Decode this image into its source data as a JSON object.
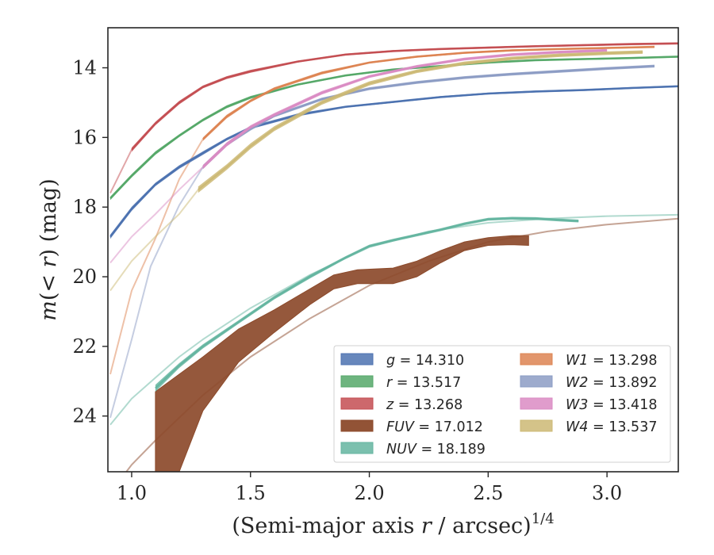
{
  "chart_data": {
    "type": "line",
    "xlabel": "(Semi-major axis r / arcsec)",
    "xlabel_prefix": "(Semi-major axis ",
    "xlabel_var": "r",
    "xlabel_suffix": " / arcsec)",
    "xlabel_exponent": "1/4",
    "ylabel": "m(< r) (mag)",
    "ylabel_var": "m",
    "ylabel_mid": "(< ",
    "ylabel_var2": "r",
    "ylabel_tail": ") (mag)",
    "xlim": [
      0.9,
      3.3
    ],
    "ylim": [
      25.6,
      12.85
    ],
    "y_inverted": true,
    "xticks": [
      1.0,
      1.5,
      2.0,
      2.5,
      3.0
    ],
    "xtick_labels": [
      "1.0",
      "1.5",
      "2.0",
      "2.5",
      "3.0"
    ],
    "yticks": [
      14,
      16,
      18,
      20,
      22,
      24
    ],
    "ytick_labels": [
      "14",
      "16",
      "18",
      "20",
      "22",
      "24"
    ],
    "legend_position": "lower-right",
    "series": [
      {
        "name": "g = 14.310",
        "band": "g",
        "value": "14.310",
        "color": "#4c72b0",
        "kind": "band",
        "x": [
          0.91,
          1.0,
          1.1,
          1.2,
          1.3,
          1.4,
          1.5,
          1.7,
          1.9,
          2.1,
          2.3,
          2.5,
          2.7,
          2.9,
          3.1,
          3.3
        ],
        "y": [
          18.85,
          18.05,
          17.35,
          16.85,
          16.45,
          16.05,
          15.72,
          15.35,
          15.12,
          14.98,
          14.84,
          14.74,
          14.68,
          14.64,
          14.58,
          14.53
        ],
        "err": [
          0.06,
          0.06,
          0.05,
          0.05,
          0.05,
          0.04,
          0.04,
          0.04,
          0.03,
          0.03,
          0.03,
          0.03,
          0.03,
          0.03,
          0.03,
          0.03
        ],
        "ext_x": [],
        "ext_y": []
      },
      {
        "name": "r = 13.517",
        "band": "r",
        "value": "13.517",
        "color": "#55a868",
        "kind": "band",
        "x": [
          0.91,
          1.0,
          1.1,
          1.2,
          1.3,
          1.4,
          1.5,
          1.7,
          1.9,
          2.1,
          2.3,
          2.5,
          2.7,
          2.9,
          3.1,
          3.3
        ],
        "y": [
          17.75,
          17.1,
          16.45,
          15.95,
          15.5,
          15.12,
          14.85,
          14.48,
          14.22,
          14.05,
          13.95,
          13.85,
          13.78,
          13.75,
          13.72,
          13.68
        ],
        "err": [
          0.05,
          0.05,
          0.05,
          0.04,
          0.04,
          0.04,
          0.04,
          0.03,
          0.03,
          0.03,
          0.03,
          0.03,
          0.03,
          0.03,
          0.03,
          0.03
        ],
        "ext_x": [],
        "ext_y": []
      },
      {
        "name": "z = 13.268",
        "band": "z",
        "value": "13.268",
        "color": "#c44e52",
        "kind": "band",
        "x": [
          1.0,
          1.1,
          1.2,
          1.3,
          1.4,
          1.5,
          1.7,
          1.9,
          2.1,
          2.3,
          2.5,
          2.7,
          2.9,
          3.1,
          3.3
        ],
        "y": [
          16.35,
          15.6,
          15.0,
          14.55,
          14.28,
          14.1,
          13.82,
          13.62,
          13.52,
          13.46,
          13.42,
          13.38,
          13.35,
          13.32,
          13.3
        ],
        "err": [
          0.06,
          0.05,
          0.05,
          0.04,
          0.04,
          0.04,
          0.03,
          0.03,
          0.03,
          0.03,
          0.03,
          0.03,
          0.03,
          0.03,
          0.03
        ],
        "ext_x": [
          0.91,
          1.0
        ],
        "ext_y": [
          17.6,
          16.35
        ]
      },
      {
        "name": "FUV = 17.012",
        "band": "FUV",
        "value": "17.012",
        "color": "#8c4a2b",
        "kind": "wide",
        "x": [
          1.1,
          1.2,
          1.3,
          1.45,
          1.6,
          1.75,
          1.85,
          1.95,
          2.1,
          2.2,
          2.3,
          2.4,
          2.5,
          2.6,
          2.67
        ],
        "y_top": [
          23.3,
          22.8,
          22.3,
          21.5,
          20.95,
          20.35,
          19.95,
          19.8,
          19.75,
          19.55,
          19.25,
          19.0,
          18.88,
          18.82,
          18.82
        ],
        "y_bottom": [
          25.6,
          25.6,
          23.85,
          22.45,
          21.6,
          20.8,
          20.35,
          20.2,
          20.2,
          20.0,
          19.6,
          19.25,
          19.1,
          19.08,
          19.1
        ],
        "ext_x": [
          0.91,
          1.0,
          1.1,
          1.2,
          1.3,
          1.5,
          1.75,
          2.0,
          2.25,
          2.5,
          2.75,
          3.0,
          3.3
        ],
        "ext_y": [
          26.2,
          25.4,
          24.7,
          24.05,
          23.4,
          22.3,
          21.2,
          20.25,
          19.55,
          19.0,
          18.7,
          18.5,
          18.33
        ]
      },
      {
        "name": "NUV = 18.189",
        "band": "NUV",
        "value": "18.189",
        "color": "#64b5a0",
        "kind": "band",
        "x": [
          1.1,
          1.2,
          1.3,
          1.45,
          1.6,
          1.75,
          1.9,
          2.0,
          2.1,
          2.2,
          2.3,
          2.4,
          2.5,
          2.6,
          2.7,
          2.8,
          2.88
        ],
        "y": [
          23.2,
          22.55,
          22.0,
          21.3,
          20.6,
          20.0,
          19.45,
          19.12,
          18.95,
          18.8,
          18.65,
          18.48,
          18.35,
          18.32,
          18.33,
          18.37,
          18.4
        ],
        "err": [
          0.1,
          0.07,
          0.06,
          0.05,
          0.05,
          0.05,
          0.04,
          0.04,
          0.04,
          0.04,
          0.04,
          0.04,
          0.04,
          0.04,
          0.04,
          0.04,
          0.04
        ],
        "ext_x": [
          0.91,
          1.0,
          1.1,
          1.2,
          1.3,
          1.5,
          1.75,
          2.0,
          2.25,
          2.5,
          2.75,
          3.0,
          3.3
        ],
        "ext_y": [
          24.25,
          23.5,
          22.9,
          22.3,
          21.8,
          20.9,
          19.95,
          19.15,
          18.7,
          18.45,
          18.33,
          18.26,
          18.22
        ]
      },
      {
        "name": "W1 = 13.298",
        "band": "W1",
        "value": "13.298",
        "color": "#dd8452",
        "kind": "band",
        "x": [
          1.3,
          1.4,
          1.5,
          1.6,
          1.8,
          2.0,
          2.2,
          2.4,
          2.6,
          2.8,
          3.0,
          3.2
        ],
        "y": [
          16.05,
          15.4,
          14.95,
          14.6,
          14.15,
          13.85,
          13.68,
          13.57,
          13.5,
          13.46,
          13.43,
          13.4
        ],
        "err": [
          0.05,
          0.05,
          0.04,
          0.04,
          0.04,
          0.03,
          0.03,
          0.03,
          0.03,
          0.03,
          0.03,
          0.03
        ],
        "ext_x": [
          0.91,
          1.0,
          1.1,
          1.2,
          1.3
        ],
        "ext_y": [
          22.8,
          20.4,
          18.9,
          17.2,
          16.05
        ]
      },
      {
        "name": "W2 = 13.892",
        "band": "W2",
        "value": "13.892",
        "color": "#8c9cc4",
        "kind": "band",
        "x": [
          1.3,
          1.4,
          1.5,
          1.6,
          1.8,
          2.0,
          2.2,
          2.4,
          2.6,
          2.8,
          3.0,
          3.2
        ],
        "y": [
          16.85,
          16.2,
          15.75,
          15.38,
          14.9,
          14.6,
          14.42,
          14.28,
          14.18,
          14.1,
          14.02,
          13.95
        ],
        "err": [
          0.06,
          0.05,
          0.05,
          0.04,
          0.04,
          0.04,
          0.04,
          0.04,
          0.04,
          0.04,
          0.04,
          0.04
        ],
        "ext_x": [
          0.91,
          1.0,
          1.08,
          1.2,
          1.3
        ],
        "ext_y": [
          24.05,
          21.8,
          19.7,
          17.95,
          16.85
        ]
      },
      {
        "name": "W3 = 13.418",
        "band": "W3",
        "value": "13.418",
        "color": "#da8bc3",
        "kind": "band",
        "x": [
          1.3,
          1.4,
          1.5,
          1.6,
          1.8,
          2.0,
          2.2,
          2.4,
          2.6,
          2.8,
          3.0
        ],
        "y": [
          16.85,
          16.2,
          15.7,
          15.35,
          14.72,
          14.25,
          13.96,
          13.75,
          13.62,
          13.55,
          13.5
        ],
        "err": [
          0.06,
          0.06,
          0.05,
          0.05,
          0.05,
          0.04,
          0.04,
          0.04,
          0.04,
          0.04,
          0.04
        ],
        "ext_x": [
          0.91,
          1.0,
          1.1,
          1.2,
          1.3
        ],
        "ext_y": [
          19.6,
          18.85,
          18.2,
          17.5,
          16.85
        ]
      },
      {
        "name": "W4 = 13.537",
        "band": "W4",
        "value": "13.537",
        "color": "#ccb974",
        "kind": "band",
        "x": [
          1.28,
          1.4,
          1.5,
          1.6,
          1.8,
          2.0,
          2.2,
          2.4,
          2.6,
          2.8,
          3.0,
          3.15
        ],
        "y": [
          17.5,
          16.85,
          16.25,
          15.75,
          15.0,
          14.45,
          14.1,
          13.87,
          13.73,
          13.64,
          13.58,
          13.55
        ],
        "err": [
          0.09,
          0.08,
          0.08,
          0.07,
          0.06,
          0.06,
          0.05,
          0.05,
          0.05,
          0.05,
          0.05,
          0.05
        ],
        "ext_x": [
          0.91,
          1.0,
          1.1,
          1.2,
          1.28
        ],
        "ext_y": [
          20.4,
          19.55,
          18.85,
          18.2,
          17.5
        ]
      }
    ]
  }
}
